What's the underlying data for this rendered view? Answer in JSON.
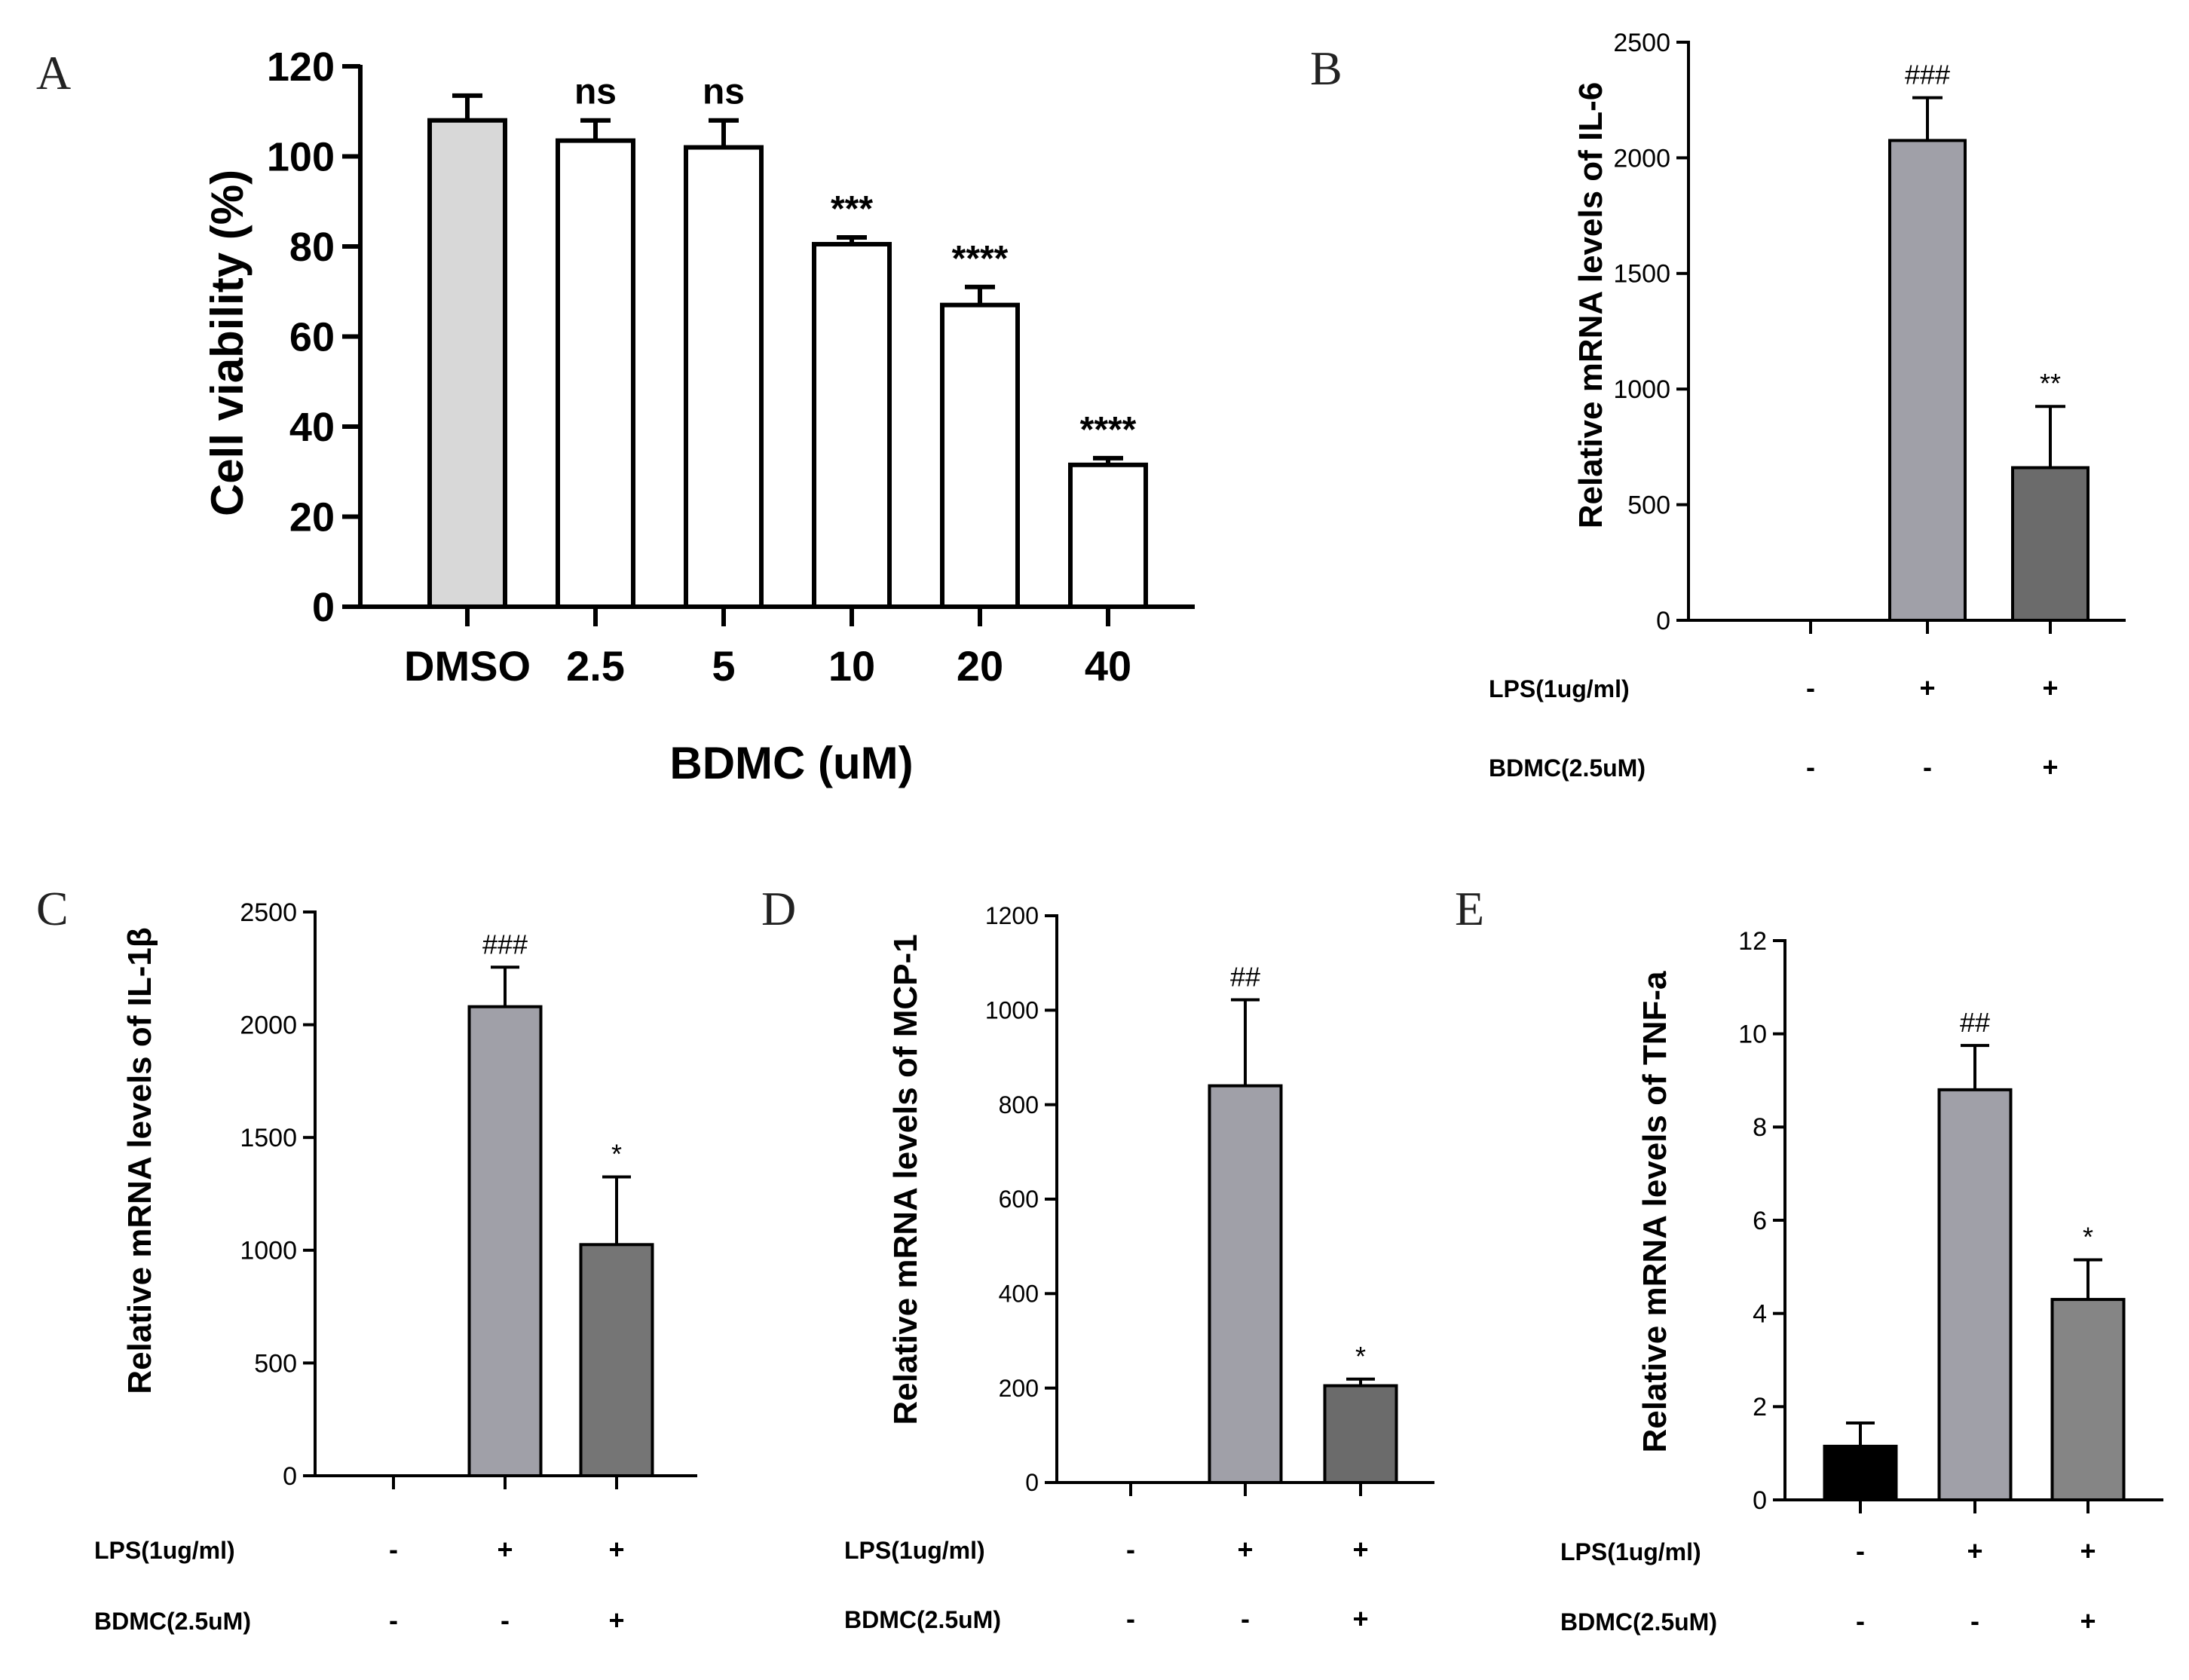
{
  "figure": {
    "colors": {
      "axis": "#000000",
      "control": "#000000",
      "lps": "#a0a0a8",
      "bdmc": "#6b6b6b",
      "dmso": "#d8d8d8",
      "open": "#ffffff"
    }
  },
  "chart_data": [
    {
      "panel": "A",
      "type": "bar",
      "title": "",
      "xlabel": "BDMC (uM)",
      "ylabel": "Cell viability (%)",
      "ylim": [
        0,
        120
      ],
      "yticks": [
        "0",
        "20",
        "40",
        "60",
        "80",
        "100",
        "120"
      ],
      "categories": [
        "DMSO",
        "2.5",
        "5",
        "10",
        "20",
        "40"
      ],
      "values": [
        108,
        103.5,
        102,
        80.5,
        67,
        31.5
      ],
      "errors": [
        5.5,
        4.5,
        6,
        1.5,
        4,
        1.5
      ],
      "annotations": [
        "",
        "ns",
        "ns",
        "***",
        "****",
        "****"
      ],
      "bar_colors": [
        "#d8d8d8",
        "#ffffff",
        "#ffffff",
        "#ffffff",
        "#ffffff",
        "#ffffff"
      ]
    },
    {
      "panel": "B",
      "type": "bar",
      "ylabel": "Relative  mRNA levels of IL-6",
      "ylim": [
        0,
        2500
      ],
      "yticks": [
        "0",
        "500",
        "1000",
        "1500",
        "2000",
        "2500"
      ],
      "values": [
        0,
        2075,
        660
      ],
      "errors": [
        0,
        185,
        265
      ],
      "annotations": [
        "",
        "###",
        "**"
      ],
      "bar_colors": [
        "#000000",
        "#a0a0a8",
        "#6b6b6b"
      ],
      "treatments": [
        {
          "label": "LPS(1ug/ml)",
          "signs": [
            "-",
            "+",
            "+"
          ]
        },
        {
          "label": "BDMC(2.5uM)",
          "signs": [
            "-",
            "-",
            "+"
          ]
        }
      ]
    },
    {
      "panel": "C",
      "type": "bar",
      "ylabel": "Relative  mRNA levels of IL-1β",
      "ylim": [
        0,
        2500
      ],
      "yticks": [
        "0",
        "500",
        "1000",
        "1500",
        "2000",
        "2500"
      ],
      "values": [
        0,
        2080,
        1025
      ],
      "errors": [
        0,
        175,
        300
      ],
      "annotations": [
        "",
        "###",
        "*"
      ],
      "bar_colors": [
        "#000000",
        "#a0a0a8",
        "#757575"
      ],
      "treatments": [
        {
          "label": "LPS(1ug/ml)",
          "signs": [
            "-",
            "+",
            "+"
          ]
        },
        {
          "label": "BDMC(2.5uM)",
          "signs": [
            "-",
            "-",
            "+"
          ]
        }
      ]
    },
    {
      "panel": "D",
      "type": "bar",
      "ylabel": "Relative  mRNA levels of MCP-1",
      "ylim": [
        0,
        1200
      ],
      "yticks": [
        "0",
        "200",
        "400",
        "600",
        "800",
        "1000",
        "1200"
      ],
      "values": [
        0,
        840,
        205
      ],
      "errors": [
        0,
        182,
        14
      ],
      "annotations": [
        "",
        "##",
        "*"
      ],
      "bar_colors": [
        "#000000",
        "#a0a0a8",
        "#6b6b6b"
      ],
      "treatments": [
        {
          "label": "LPS(1ug/ml)",
          "signs": [
            "-",
            "+",
            "+"
          ]
        },
        {
          "label": "BDMC(2.5uM)",
          "signs": [
            "-",
            "-",
            "+"
          ]
        }
      ]
    },
    {
      "panel": "E",
      "type": "bar",
      "ylabel": "Relative  mRNA levels of TNF-a",
      "ylim": [
        0,
        12
      ],
      "yticks": [
        "0",
        "2",
        "4",
        "6",
        "8",
        "10",
        "12"
      ],
      "values": [
        1.15,
        8.8,
        4.3
      ],
      "errors": [
        0.5,
        0.95,
        0.85
      ],
      "annotations": [
        "",
        "##",
        "*"
      ],
      "bar_colors": [
        "#000000",
        "#a0a0a8",
        "#858585"
      ],
      "treatments": [
        {
          "label": "LPS(1ug/ml)",
          "signs": [
            "-",
            "+",
            "+"
          ]
        },
        {
          "label": "BDMC(2.5uM)",
          "signs": [
            "-",
            "-",
            "+"
          ]
        }
      ]
    }
  ]
}
